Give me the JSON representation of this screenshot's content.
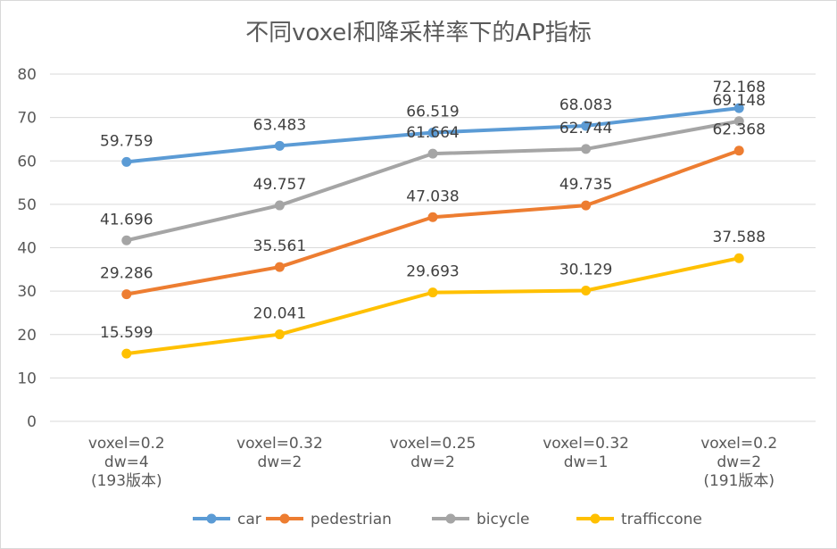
{
  "chart_data": {
    "type": "line",
    "title": "不同voxel和降采样率下的AP指标",
    "xlabel": "",
    "ylabel": "",
    "ylim": [
      0,
      80
    ],
    "yticks": [
      0,
      10,
      20,
      30,
      40,
      50,
      60,
      70,
      80
    ],
    "grid": true,
    "legend_position": "bottom",
    "categories": [
      [
        "voxel=0.2",
        "dw=4",
        "(193版本)"
      ],
      [
        "voxel=0.32",
        "dw=2"
      ],
      [
        "voxel=0.25",
        "dw=2"
      ],
      [
        "voxel=0.32",
        "dw=1"
      ],
      [
        "voxel=0.2",
        "dw=2",
        "(191版本)"
      ]
    ],
    "series": [
      {
        "name": "car",
        "color": "#5b9bd5",
        "values": [
          59.759,
          63.483,
          66.519,
          68.083,
          72.168
        ],
        "labels": [
          "59.759",
          "63.483",
          "66.519",
          "68.083",
          "72.168"
        ]
      },
      {
        "name": "pedestrian",
        "color": "#ed7d31",
        "values": [
          29.286,
          35.561,
          47.038,
          49.735,
          62.368
        ],
        "labels": [
          "29.286",
          "35.561",
          "47.038",
          "49.735",
          "62.368"
        ]
      },
      {
        "name": "bicycle",
        "color": "#a5a5a5",
        "values": [
          41.696,
          49.757,
          61.664,
          62.744,
          69.148
        ],
        "labels": [
          "41.696",
          "49.757",
          "61.664",
          "62.744",
          "69.148"
        ]
      },
      {
        "name": "trafficcone",
        "color": "#ffc000",
        "values": [
          15.599,
          20.041,
          29.693,
          30.129,
          37.588
        ],
        "labels": [
          "15.599",
          "20.041",
          "29.693",
          "30.129",
          "37.588"
        ]
      }
    ]
  }
}
